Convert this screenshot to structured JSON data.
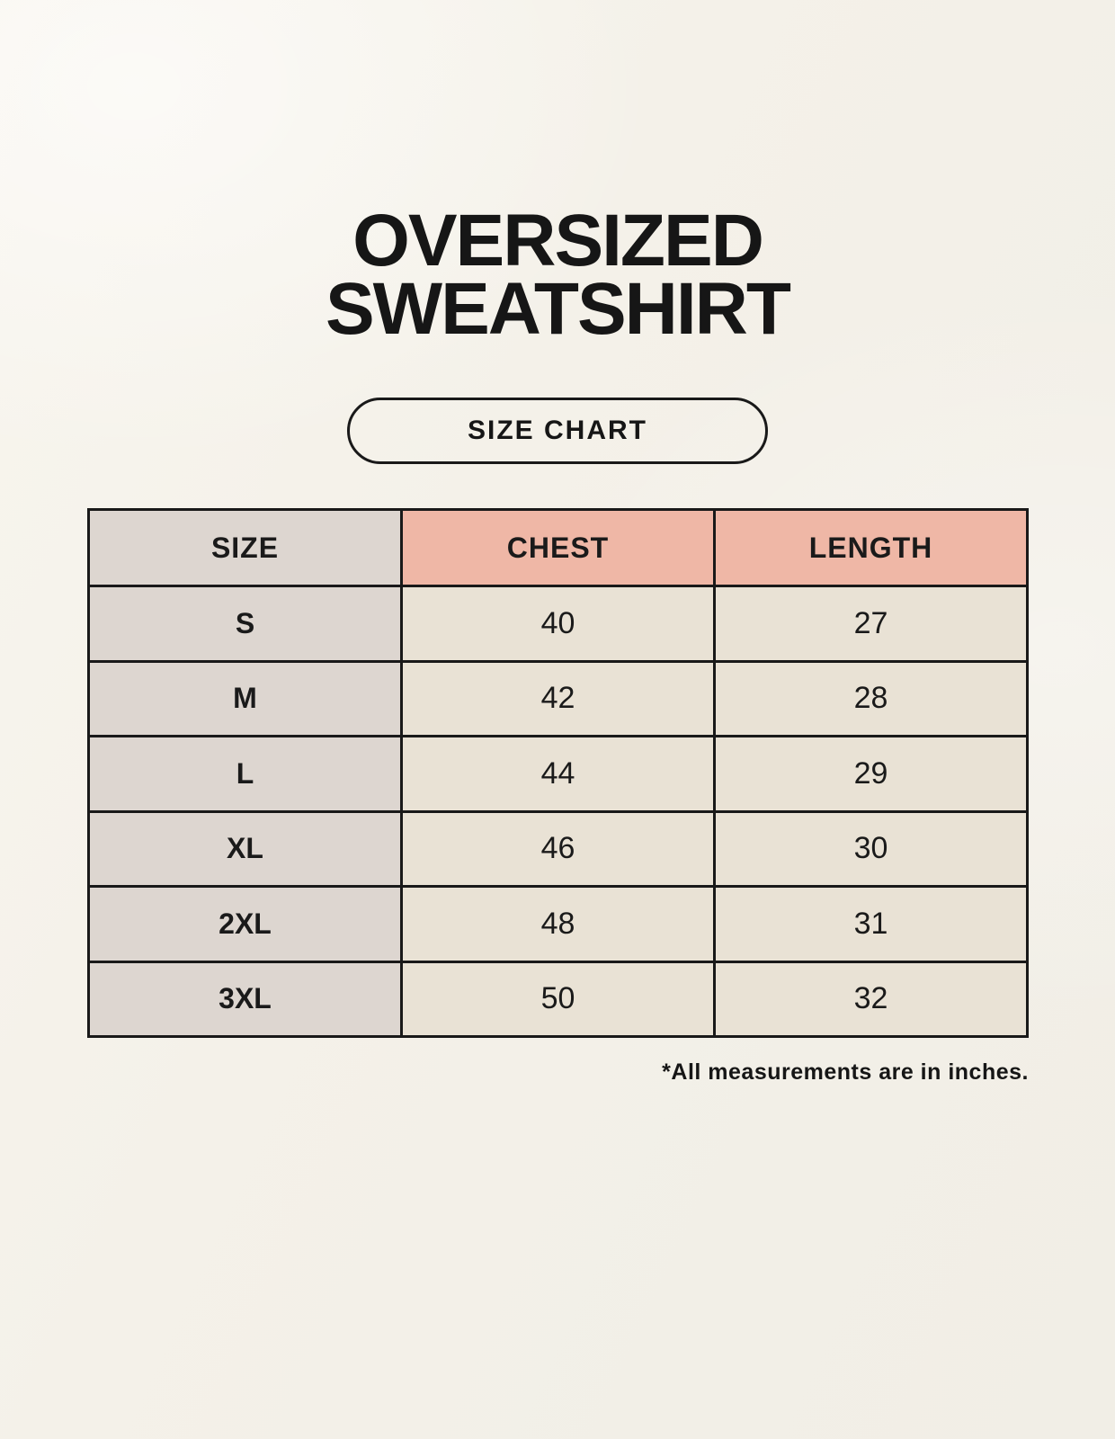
{
  "header": {
    "title_line1": "OVERSIZED",
    "title_line2": "SWEATSHIRT",
    "badge_label": "SIZE CHART"
  },
  "chart_data": {
    "type": "table",
    "title": "OVERSIZED SWEATSHIRT SIZE CHART",
    "columns": [
      "SIZE",
      "CHEST",
      "LENGTH"
    ],
    "rows": [
      {
        "size": "S",
        "chest": 40,
        "length": 27
      },
      {
        "size": "M",
        "chest": 42,
        "length": 28
      },
      {
        "size": "L",
        "chest": 44,
        "length": 29
      },
      {
        "size": "XL",
        "chest": 46,
        "length": 30
      },
      {
        "size": "2XL",
        "chest": 48,
        "length": 31
      },
      {
        "size": "3XL",
        "chest": 50,
        "length": 32
      }
    ],
    "footnote": "*All measurements are in inches."
  },
  "colors": {
    "background": "#f4f1e9",
    "cell_gray": "#ddd6d0",
    "cell_pink": "#efb7a6",
    "cell_cream": "#e9e2d5",
    "border": "#191919",
    "text": "#161616"
  }
}
